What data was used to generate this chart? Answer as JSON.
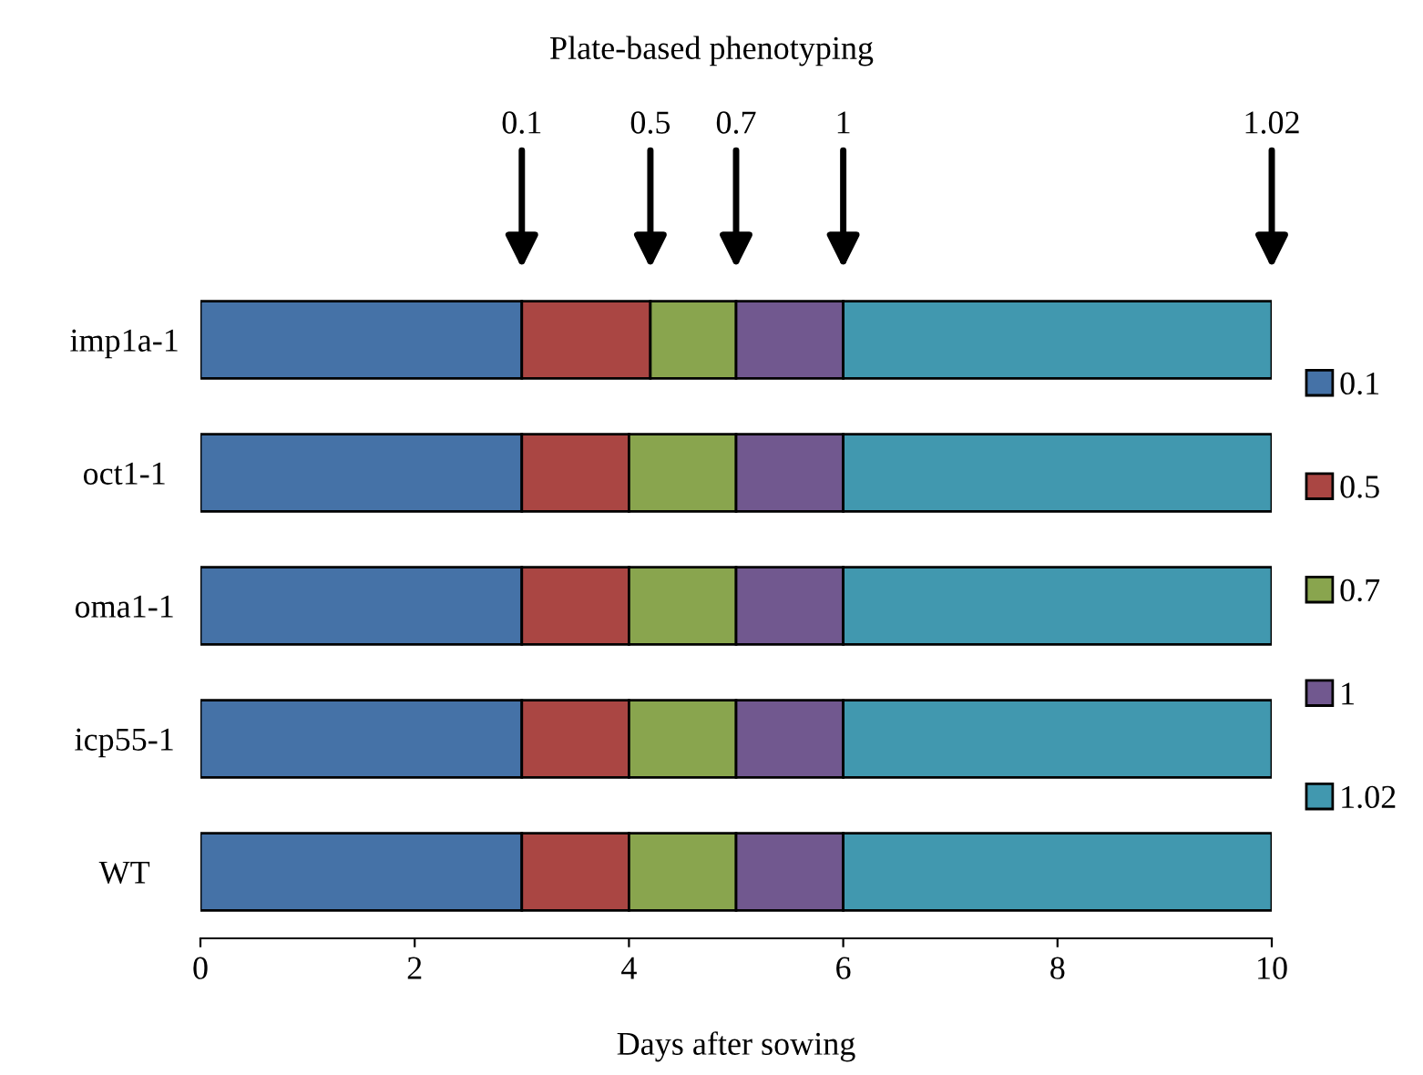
{
  "chart_data": {
    "type": "bar",
    "orientation": "horizontal",
    "stacked": true,
    "title": "Plate-based phenotyping",
    "xlabel": "Days after sowing",
    "categories": [
      "imp1a-1",
      "oct1-1",
      "oma1-1",
      "icp55-1",
      "WT"
    ],
    "series": [
      {
        "name": "0.1",
        "color": "#4572a7",
        "values": [
          3,
          3,
          3,
          3,
          3
        ]
      },
      {
        "name": "0.5",
        "color": "#aa4643",
        "values": [
          1.2,
          1,
          1,
          1,
          1
        ]
      },
      {
        "name": "0.7",
        "color": "#89a54e",
        "values": [
          0.8,
          1,
          1,
          1,
          1
        ]
      },
      {
        "name": "1",
        "color": "#71588f",
        "values": [
          1,
          1,
          1,
          1,
          1
        ]
      },
      {
        "name": "1.02",
        "color": "#4198af",
        "values": [
          4,
          4,
          4,
          4,
          4
        ]
      }
    ],
    "xlim": [
      0,
      10
    ],
    "xticks": [
      0,
      2,
      4,
      6,
      8,
      10
    ],
    "grid": false,
    "legend": "right",
    "annotations": [
      "0.1",
      "0.5",
      "0.7",
      "1",
      "1.02"
    ]
  }
}
